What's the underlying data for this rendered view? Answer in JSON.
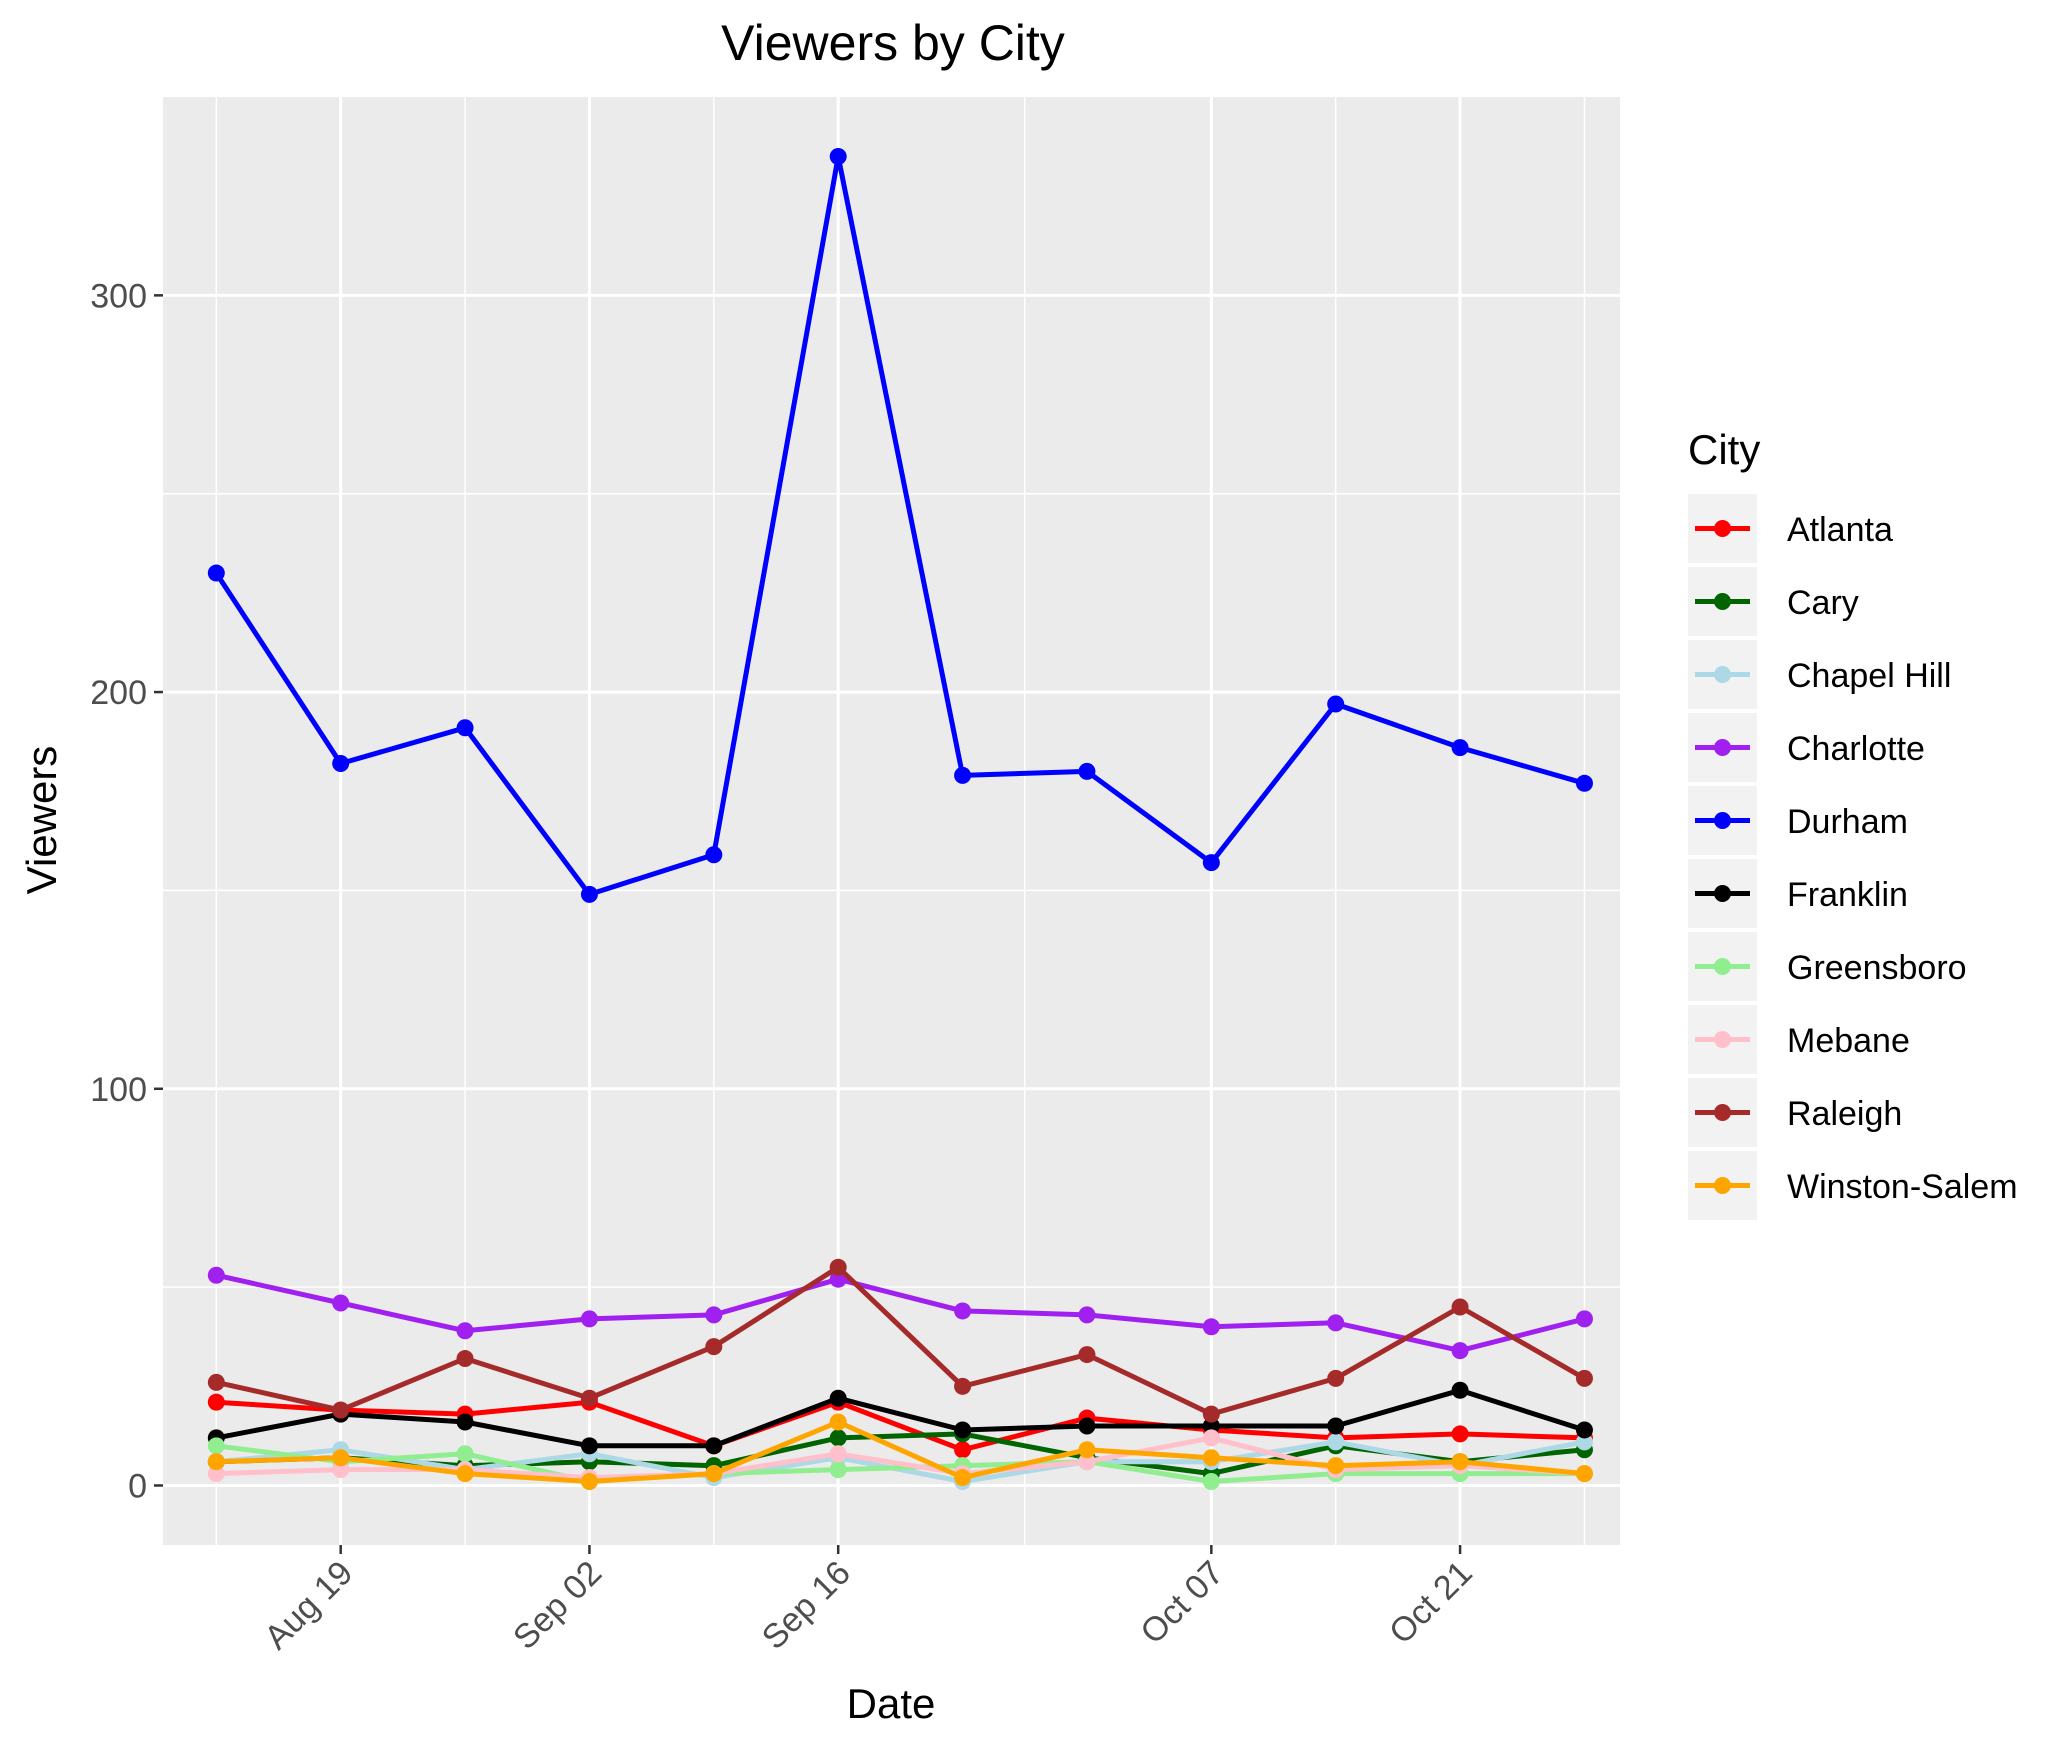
{
  "chart_data": {
    "type": "line",
    "title": "Viewers by City",
    "xlabel": "Date",
    "ylabel": "Viewers",
    "ylim": [
      -15,
      350
    ],
    "xlim": [
      "2018-08-09",
      "2018-10-30"
    ],
    "y_ticks": [
      0,
      100,
      200,
      300
    ],
    "x_ticks": [
      {
        "date": "2018-08-19",
        "label": "Aug 19"
      },
      {
        "date": "2018-09-02",
        "label": "Sep 02"
      },
      {
        "date": "2018-09-16",
        "label": "Sep 16"
      },
      {
        "date": "2018-10-07",
        "label": "Oct 07"
      },
      {
        "date": "2018-10-21",
        "label": "Oct 21"
      }
    ],
    "x_tick_label_rotation": -45,
    "grid": true,
    "panel_background": "#ebebeb",
    "legend": {
      "title": "City",
      "position": "right"
    },
    "x": [
      "2018-08-12",
      "2018-08-19",
      "2018-08-26",
      "2018-09-02",
      "2018-09-09",
      "2018-09-16",
      "2018-09-23",
      "2018-09-30",
      "2018-10-07",
      "2018-10-14",
      "2018-10-21",
      "2018-10-28"
    ],
    "series": [
      {
        "name": "Atlanta",
        "color": "#ff0000",
        "values": [
          21,
          19,
          18,
          21,
          10,
          21,
          9,
          17,
          14,
          12,
          13,
          12
        ]
      },
      {
        "name": "Cary",
        "color": "#006400",
        "values": [
          6,
          7,
          5,
          6,
          5,
          12,
          13,
          7,
          3,
          10,
          6,
          9
        ]
      },
      {
        "name": "Chapel Hill",
        "color": "#add8e6",
        "values": [
          6,
          9,
          4,
          8,
          2,
          7,
          1,
          6,
          6,
          11,
          5,
          11
        ]
      },
      {
        "name": "Charlotte",
        "color": "#a020f0",
        "values": [
          53,
          46,
          39,
          42,
          43,
          52,
          44,
          43,
          40,
          41,
          34,
          42
        ]
      },
      {
        "name": "Durham",
        "color": "#0000ff",
        "values": [
          230,
          182,
          191,
          149,
          159,
          335,
          179,
          180,
          157,
          197,
          186,
          177
        ]
      },
      {
        "name": "Franklin",
        "color": "#000000",
        "values": [
          12,
          18,
          16,
          10,
          10,
          22,
          14,
          15,
          15,
          15,
          24,
          14
        ]
      },
      {
        "name": "Greensboro",
        "color": "#90ee90",
        "values": [
          10,
          6,
          8,
          1,
          3,
          4,
          5,
          6,
          1,
          3,
          3,
          3
        ]
      },
      {
        "name": "Mebane",
        "color": "#ffc0cb",
        "values": [
          3,
          4,
          4,
          2,
          3,
          8,
          3,
          6,
          12,
          4,
          5,
          3
        ]
      },
      {
        "name": "Raleigh",
        "color": "#a52a2a",
        "values": [
          26,
          19,
          32,
          22,
          35,
          55,
          25,
          33,
          18,
          27,
          45,
          27
        ]
      },
      {
        "name": "Winston-Salem",
        "color": "#ffa500",
        "values": [
          6,
          7,
          3,
          1,
          3,
          16,
          2,
          9,
          7,
          5,
          6,
          3
        ]
      }
    ]
  }
}
